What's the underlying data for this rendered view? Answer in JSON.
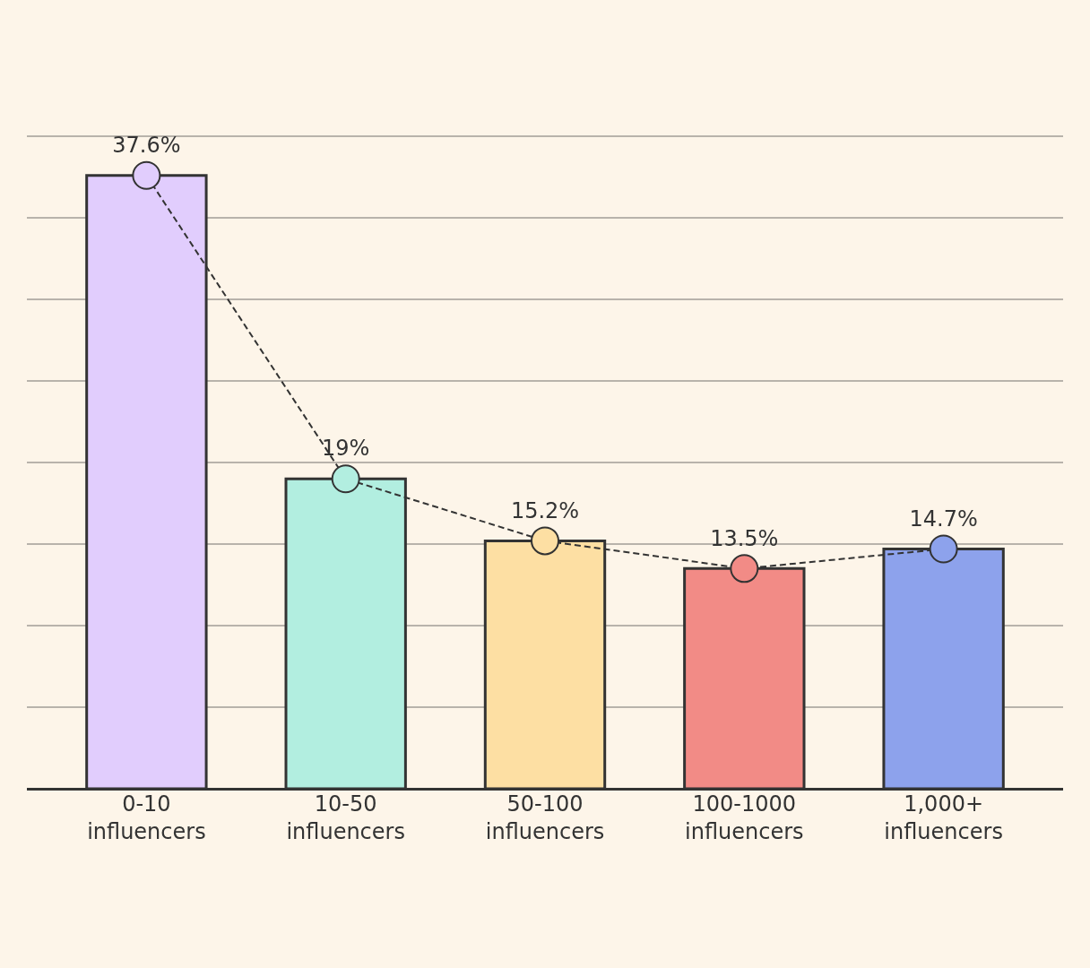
{
  "chart_data": {
    "type": "bar",
    "categories": [
      "0-10 influencers",
      "10-50 influencers",
      "50-100 influencers",
      "100-1000 influencers",
      "1,000+ influencers"
    ],
    "series": [
      {
        "colors": [
          "#e1cdfd",
          "#b2eee0",
          "#fddfa3",
          "#f28b86",
          "#8da2ec"
        ],
        "values": [
          37.6,
          19,
          15.2,
          13.5,
          14.7
        ]
      },
      {
        "type": "line",
        "colors": [
          "#e1cdfd",
          "#b2eee0",
          "#fddfa3",
          "#f28b86",
          "#8da2ec"
        ],
        "values": [
          37.6,
          19,
          15.2,
          13.5,
          14.7
        ],
        "value_labels": [
          "37.6%",
          "19%",
          "15.2%",
          "13.5%",
          "14.7%"
        ],
        "line_style": "dashed",
        "marker": "circle"
      }
    ],
    "grid": "y"
  }
}
